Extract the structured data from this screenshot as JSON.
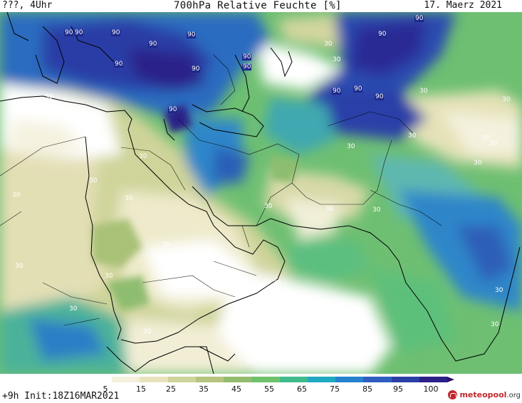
{
  "header": {
    "valid_time": "???, 4Uhr",
    "title": "700hPa Relative Feuchte [%]",
    "date": "17. Maerz 2021"
  },
  "footer": {
    "run_info": "+9h  Init:18Z16MAR2021",
    "brand_name": "meteopool",
    "brand_tld": ".org"
  },
  "colorbar": {
    "unit": "%",
    "colors": [
      "#ffffff",
      "#f4f0dc",
      "#e8e3bd",
      "#cfd49a",
      "#b5c47e",
      "#93bc6e",
      "#6fc16c",
      "#3fba8a",
      "#1fa8c2",
      "#2682cf",
      "#2f5ec0",
      "#2a3ea6",
      "#2a2088"
    ],
    "ticks": [
      "5",
      "15",
      "25",
      "35",
      "45",
      "55",
      "65",
      "75",
      "85",
      "95",
      "100"
    ]
  },
  "contour_labels": [
    {
      "text": "90",
      "kind": "dark"
    },
    {
      "text": "90",
      "kind": "dark"
    },
    {
      "text": "90",
      "kind": "dark"
    },
    {
      "text": "90",
      "kind": "dark"
    },
    {
      "text": "90",
      "kind": "dark"
    },
    {
      "text": "90",
      "kind": "dark"
    },
    {
      "text": "90",
      "kind": "dark"
    },
    {
      "text": "90",
      "kind": "dark"
    },
    {
      "text": "90",
      "kind": "dark"
    },
    {
      "text": "90",
      "kind": "dark"
    },
    {
      "text": "90",
      "kind": "dark"
    },
    {
      "text": "90",
      "kind": "dark"
    },
    {
      "text": "90",
      "kind": "dark"
    },
    {
      "text": "90",
      "kind": "dark"
    },
    {
      "text": "90",
      "kind": "dark"
    },
    {
      "text": "30",
      "kind": "light"
    },
    {
      "text": "30",
      "kind": "light"
    },
    {
      "text": "30",
      "kind": "light"
    },
    {
      "text": "30",
      "kind": "light"
    },
    {
      "text": "30",
      "kind": "light"
    },
    {
      "text": "30",
      "kind": "light"
    },
    {
      "text": "30",
      "kind": "light"
    },
    {
      "text": "30",
      "kind": "light"
    },
    {
      "text": "30",
      "kind": "light"
    },
    {
      "text": "30",
      "kind": "light"
    },
    {
      "text": "30",
      "kind": "light"
    },
    {
      "text": "30",
      "kind": "light"
    },
    {
      "text": "30",
      "kind": "light"
    },
    {
      "text": "30",
      "kind": "light"
    },
    {
      "text": "30",
      "kind": "light"
    },
    {
      "text": "30",
      "kind": "light"
    },
    {
      "text": "30",
      "kind": "light"
    },
    {
      "text": "30",
      "kind": "light"
    },
    {
      "text": "30",
      "kind": "light"
    },
    {
      "text": "30",
      "kind": "light"
    },
    {
      "text": "30",
      "kind": "light"
    },
    {
      "text": "30",
      "kind": "light"
    },
    {
      "text": "30",
      "kind": "light"
    },
    {
      "text": "30",
      "kind": "light"
    },
    {
      "text": "30",
      "kind": "light"
    },
    {
      "text": "30",
      "kind": "light"
    }
  ]
}
